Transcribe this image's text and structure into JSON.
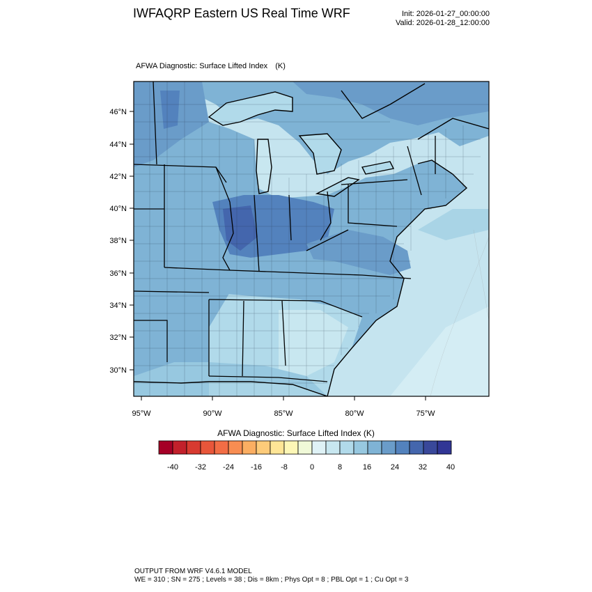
{
  "header": {
    "title": "IWFAQRP Eastern US Real Time WRF",
    "init": "Init: 2026-01-27_00:00:00",
    "valid": "Valid: 2026-01-28_12:00:00"
  },
  "map": {
    "subtitle": "AFWA Diagnostic: Surface Lifted Index",
    "units": "(K)",
    "lat_labels": [
      "46°N",
      "44°N",
      "42°N",
      "40°N",
      "38°N",
      "36°N",
      "34°N",
      "32°N",
      "30°N"
    ],
    "lon_labels": [
      "95°W",
      "90°W",
      "85°W",
      "80°W",
      "75°W"
    ]
  },
  "colorbar": {
    "title": "AFWA Diagnostic: Surface Lifted Index  (K)",
    "tick_labels": [
      "-40",
      "-32",
      "-24",
      "-16",
      "-8",
      "0",
      "8",
      "16",
      "24",
      "32",
      "40"
    ],
    "colors": [
      "#a50026",
      "#c2202b",
      "#d83a30",
      "#e8563a",
      "#f26d45",
      "#f88d52",
      "#fbae62",
      "#fdcb7a",
      "#fee596",
      "#fdf7b6",
      "#f0f9d8",
      "#dff2f6",
      "#c8e7f0",
      "#b1daea",
      "#97c8e0",
      "#7fb3d5",
      "#6a9cc9",
      "#5382bd",
      "#4466ad",
      "#39489a",
      "#313695"
    ]
  },
  "footer": {
    "line1": "OUTPUT FROM WRF V4.6.1 MODEL",
    "line2": "WE = 310 ; SN = 275 ; Levels = 38 ; Dis = 8km ; Phys Opt = 8 ; PBL Opt = 1 ; Cu Opt = 3"
  }
}
